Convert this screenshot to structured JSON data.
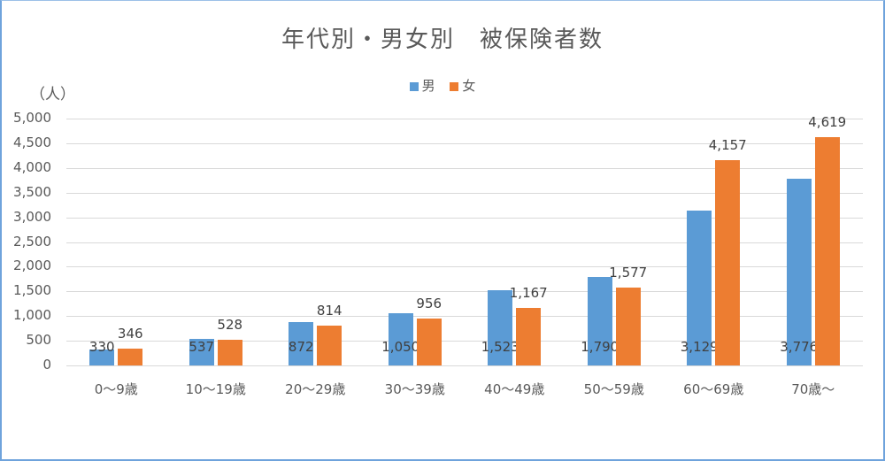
{
  "chart_data": {
    "type": "bar",
    "title": "年代別・男女別　被保険者数",
    "xlabel": "",
    "ylabel": "（人）",
    "ylim": [
      0,
      5000
    ],
    "yticks": [
      "0",
      "500",
      "1,000",
      "1,500",
      "2,000",
      "2,500",
      "3,000",
      "3,500",
      "4,000",
      "4,500",
      "5,000"
    ],
    "grid": true,
    "legend_position": "top",
    "categories": [
      "0～9歳",
      "10～19歳",
      "20～29歳",
      "30～39歳",
      "40～49歳",
      "50～59歳",
      "60～69歳",
      "70歳～"
    ],
    "series": [
      {
        "name": "男",
        "color": "#5b9bd5",
        "values": [
          330,
          537,
          872,
          1050,
          1523,
          1790,
          3129,
          3776
        ],
        "labels": [
          "330",
          "537",
          "872",
          "1,050",
          "1,523",
          "1,790",
          "3,129",
          "3,776"
        ]
      },
      {
        "name": "女",
        "color": "#ed7d31",
        "values": [
          346,
          528,
          814,
          956,
          1167,
          1577,
          4157,
          4619
        ],
        "labels": [
          "346",
          "528",
          "814",
          "956",
          "1,167",
          "1,577",
          "4,157",
          "4,619"
        ]
      }
    ]
  }
}
